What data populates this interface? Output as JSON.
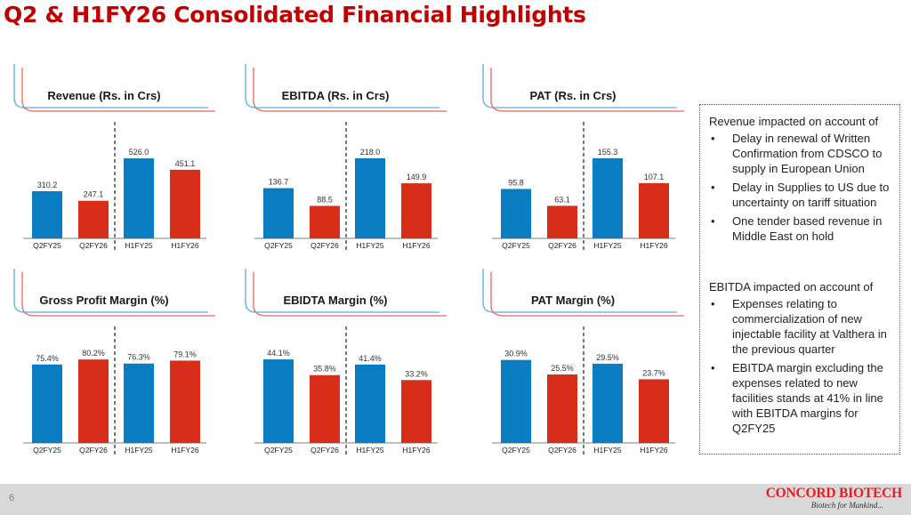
{
  "page": {
    "title": "Q2 & H1FY26 Consolidated Financial Highlights",
    "page_number": "6"
  },
  "colors": {
    "blue": "#0a7cc1",
    "red": "#d62e18",
    "title_red": "#c00000",
    "brand_red": "#e31e24"
  },
  "chart_data": [
    {
      "type": "bar",
      "title": "Revenue (Rs. in Crs)",
      "categories": [
        "Q2FY25",
        "Q2FY26",
        "H1FY25",
        "H1FY26"
      ],
      "values": [
        310.2,
        247.1,
        526.0,
        451.1
      ],
      "value_labels": [
        "310.2",
        "247.1",
        "526.0",
        "451.1"
      ],
      "bar_colors": [
        "blue",
        "red",
        "blue",
        "red"
      ],
      "xlabel": "",
      "ylabel": "",
      "ylim": [
        0,
        600
      ],
      "grid": false,
      "legend": "none",
      "divider_after": 2
    },
    {
      "type": "bar",
      "title": "EBITDA (Rs. in Crs)",
      "categories": [
        "Q2FY25",
        "Q2FY26",
        "H1FY25",
        "H1FY26"
      ],
      "values": [
        136.7,
        88.5,
        218.0,
        149.9
      ],
      "value_labels": [
        "136.7",
        "88.5",
        "218.0",
        "149.9"
      ],
      "bar_colors": [
        "blue",
        "red",
        "blue",
        "red"
      ],
      "xlabel": "",
      "ylabel": "",
      "ylim": [
        0,
        250
      ],
      "grid": false,
      "legend": "none",
      "divider_after": 2
    },
    {
      "type": "bar",
      "title": "PAT  (Rs. in Crs)",
      "categories": [
        "Q2FY25",
        "Q2FY26",
        "H1FY25",
        "H1FY26"
      ],
      "values": [
        95.8,
        63.1,
        155.3,
        107.1
      ],
      "value_labels": [
        "95.8",
        "63.1",
        "155.3",
        "107.1"
      ],
      "bar_colors": [
        "blue",
        "red",
        "blue",
        "red"
      ],
      "xlabel": "",
      "ylabel": "",
      "ylim": [
        0,
        180
      ],
      "grid": false,
      "legend": "none",
      "divider_after": 2
    },
    {
      "type": "bar",
      "title": "Gross Profit Margin (%)",
      "categories": [
        "Q2FY25",
        "Q2FY26",
        "H1FY25",
        "H1FY26"
      ],
      "values": [
        75.4,
        80.2,
        76.3,
        79.1
      ],
      "value_labels": [
        "75.4%",
        "80.2%",
        "76.3%",
        "79.1%"
      ],
      "bar_colors": [
        "blue",
        "red",
        "blue",
        "red"
      ],
      "xlabel": "",
      "ylabel": "",
      "ylim": [
        0,
        100
      ],
      "grid": false,
      "legend": "none",
      "divider_after": 2
    },
    {
      "type": "bar",
      "title": "EBIDTA Margin (%)",
      "categories": [
        "Q2FY25",
        "Q2FY26",
        "H1FY25",
        "H1FY26"
      ],
      "values": [
        44.1,
        35.8,
        41.4,
        33.2
      ],
      "value_labels": [
        "44.1%",
        "35.8%",
        "41.4%",
        "33.2%"
      ],
      "bar_colors": [
        "blue",
        "red",
        "blue",
        "red"
      ],
      "xlabel": "",
      "ylabel": "",
      "ylim": [
        0,
        55
      ],
      "grid": false,
      "legend": "none",
      "divider_after": 2
    },
    {
      "type": "bar",
      "title": "PAT Margin (%)",
      "categories": [
        "Q2FY25",
        "Q2FY26",
        "H1FY25",
        "H1FY26"
      ],
      "values": [
        30.9,
        25.5,
        29.5,
        23.7
      ],
      "value_labels": [
        "30.9%",
        "25.5%",
        "29.5%",
        "23.7%"
      ],
      "bar_colors": [
        "blue",
        "red",
        "blue",
        "red"
      ],
      "xlabel": "",
      "ylabel": "",
      "ylim": [
        0,
        38
      ],
      "grid": false,
      "legend": "none",
      "divider_after": 2
    }
  ],
  "notes": {
    "revenue": {
      "heading": "Revenue impacted on account of",
      "bullet_glyph": "•",
      "items": [
        "Delay in renewal of Written Confirmation from CDSCO to supply in European Union",
        "Delay in Supplies to US due to uncertainty on tariff situation",
        "One tender based revenue in Middle East on hold"
      ]
    },
    "ebitda": {
      "heading": "EBITDA impacted on account of",
      "bullet_glyph": "•",
      "items": [
        "Expenses relating to commercialization of new injectable facility at Valthera in the previous quarter",
        "EBITDA margin excluding the expenses related to new facilities stands at 41% in line with EBITDA margins for Q2FY25"
      ]
    }
  },
  "footer": {
    "brand_name": "CONCORD BIOTECH",
    "brand_tagline": "Biotech for Mankind..."
  }
}
